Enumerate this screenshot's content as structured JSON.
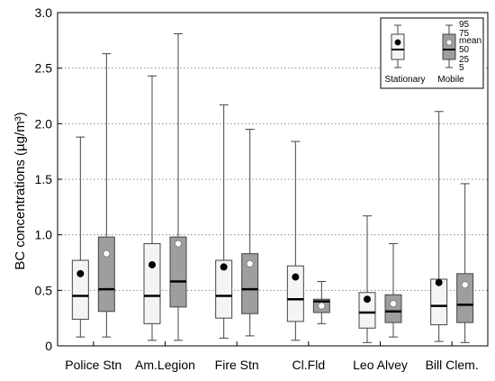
{
  "chart_data": {
    "type": "box",
    "title": "",
    "xlabel": "",
    "ylabel": "BC concentrations (µg/m³)",
    "ylim": [
      0,
      3.0
    ],
    "yticks": [
      "0",
      "0.5",
      "1.0",
      "1.5",
      "2.0",
      "2.5",
      "3.0"
    ],
    "grid": "horizontal dotted",
    "legend_position": "top-right",
    "categories": [
      "Police Stn",
      "Am.Legion",
      "Fire Stn",
      "Cl.Fld",
      "Leo Alvey",
      "Bill Clem."
    ],
    "series": [
      {
        "name": "Stationary",
        "color": "#f4f4f4",
        "mean_marker": "#000000",
        "stats": [
          {
            "p5": 0.08,
            "p25": 0.24,
            "median": 0.45,
            "mean": 0.65,
            "p75": 0.77,
            "p95": 1.88
          },
          {
            "p5": 0.05,
            "p25": 0.2,
            "median": 0.45,
            "mean": 0.73,
            "p75": 0.92,
            "p95": 2.43
          },
          {
            "p5": 0.07,
            "p25": 0.25,
            "median": 0.45,
            "mean": 0.71,
            "p75": 0.77,
            "p95": 2.17
          },
          {
            "p5": 0.05,
            "p25": 0.22,
            "median": 0.42,
            "mean": 0.62,
            "p75": 0.72,
            "p95": 1.84
          },
          {
            "p5": 0.03,
            "p25": 0.16,
            "median": 0.3,
            "mean": 0.42,
            "p75": 0.48,
            "p95": 1.17
          },
          {
            "p5": 0.04,
            "p25": 0.19,
            "median": 0.36,
            "mean": 0.57,
            "p75": 0.6,
            "p95": 2.11
          }
        ]
      },
      {
        "name": "Mobile",
        "color": "#9e9e9e",
        "mean_marker": "#ffffff",
        "stats": [
          {
            "p5": 0.08,
            "p25": 0.31,
            "median": 0.51,
            "mean": 0.83,
            "p75": 0.98,
            "p95": 2.63
          },
          {
            "p5": 0.05,
            "p25": 0.35,
            "median": 0.58,
            "mean": 0.92,
            "p75": 0.98,
            "p95": 2.81
          },
          {
            "p5": 0.09,
            "p25": 0.29,
            "median": 0.51,
            "mean": 0.74,
            "p75": 0.83,
            "p95": 1.95
          },
          {
            "p5": 0.2,
            "p25": 0.3,
            "median": 0.4,
            "mean": 0.36,
            "p75": 0.42,
            "p95": 0.58
          },
          {
            "p5": 0.08,
            "p25": 0.21,
            "median": 0.31,
            "mean": 0.38,
            "p75": 0.46,
            "p95": 0.92
          },
          {
            "p5": 0.03,
            "p25": 0.21,
            "median": 0.37,
            "mean": 0.55,
            "p75": 0.65,
            "p95": 1.46
          }
        ]
      }
    ],
    "legend": {
      "labels": [
        "Stationary",
        "Mobile"
      ],
      "percentile_labels": [
        "95",
        "75",
        "mean",
        "50",
        "25",
        "5"
      ]
    }
  }
}
